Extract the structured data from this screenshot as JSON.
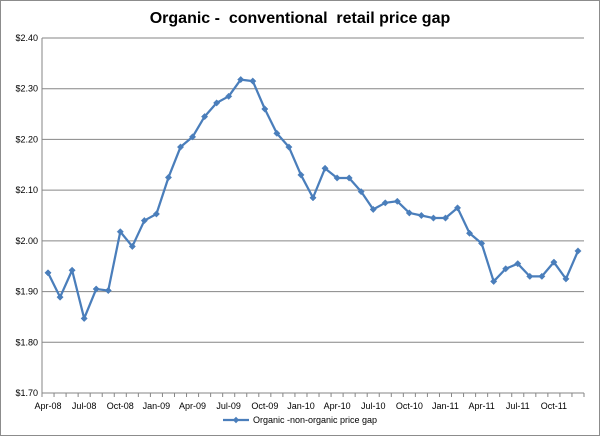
{
  "chart_data": {
    "type": "line",
    "title": "Organic -  conventional  retail price gap",
    "xlabel": "",
    "ylabel": "",
    "ylim": [
      1.7,
      2.4
    ],
    "yticks": [
      1.7,
      1.8,
      1.9,
      2.0,
      2.1,
      2.2,
      2.3,
      2.4
    ],
    "ytick_labels": [
      "$1.70",
      "$1.80",
      "$1.90",
      "$2.00",
      "$2.10",
      "$2.20",
      "$2.30",
      "$2.40"
    ],
    "grid": "horizontal",
    "legend_position": "bottom",
    "x": [
      "Apr-08",
      "May-08",
      "Jun-08",
      "Jul-08",
      "Aug-08",
      "Sep-08",
      "Oct-08",
      "Nov-08",
      "Dec-08",
      "Jan-09",
      "Feb-09",
      "Mar-09",
      "Apr-09",
      "May-09",
      "Jun-09",
      "Jul-09",
      "Aug-09",
      "Sep-09",
      "Oct-09",
      "Nov-09",
      "Dec-09",
      "Jan-10",
      "Feb-10",
      "Mar-10",
      "Apr-10",
      "May-10",
      "Jun-10",
      "Jul-10",
      "Aug-10",
      "Sep-10",
      "Oct-10",
      "Nov-10",
      "Dec-10",
      "Jan-11",
      "Feb-11",
      "Mar-11",
      "Apr-11",
      "May-11",
      "Jun-11",
      "Jul-11",
      "Aug-11",
      "Sep-11",
      "Oct-11",
      "Nov-11",
      "Dec-11"
    ],
    "xtick_labels": [
      "Apr-08",
      "Jul-08",
      "Oct-08",
      "Jan-09",
      "Apr-09",
      "Jul-09",
      "Oct-09",
      "Jan-10",
      "Apr-10",
      "Jul-10",
      "Oct-10",
      "Jan-11",
      "Apr-11",
      "Jul-11",
      "Oct-11"
    ],
    "series": [
      {
        "name": "Organic -non-organic price gap",
        "color": "#4a7ebb",
        "marker": "diamond",
        "values": [
          1.937,
          1.889,
          1.942,
          1.847,
          1.905,
          1.902,
          2.018,
          1.989,
          2.04,
          2.053,
          2.125,
          2.185,
          2.205,
          2.245,
          2.272,
          2.285,
          2.318,
          2.315,
          2.26,
          2.212,
          2.185,
          2.13,
          2.085,
          2.143,
          2.124,
          2.124,
          2.097,
          2.062,
          2.075,
          2.078,
          2.055,
          2.05,
          2.045,
          2.045,
          2.065,
          2.015,
          1.995,
          1.92,
          1.945,
          1.955,
          1.93,
          1.93,
          1.958,
          1.925,
          1.98
        ]
      }
    ]
  }
}
